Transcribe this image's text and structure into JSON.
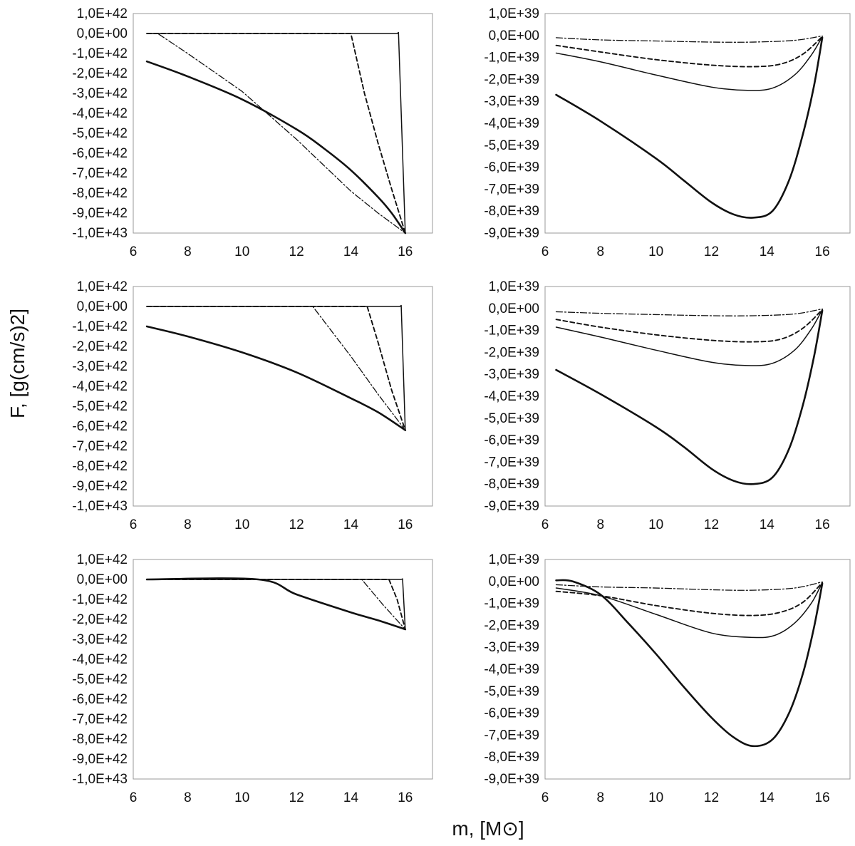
{
  "figure": {
    "ylabel": "F, [g(cm/s)2]",
    "xlabel": "m, [M⊙]"
  },
  "chart_data": [
    {
      "type": "line",
      "panel": "top-left",
      "xlim": [
        6,
        17
      ],
      "ylim": [
        -1e+43,
        1e+42
      ],
      "xticks": [
        6,
        8,
        10,
        12,
        14,
        16
      ],
      "xtick_labels": [
        "6",
        "8",
        "10",
        "12",
        "14",
        "16"
      ],
      "yticks": [
        1e+42,
        0,
        -1e+42,
        -2e+42,
        -3e+42,
        -4e+42,
        -5e+42,
        -6e+42,
        -7e+42,
        -8e+42,
        -9e+42,
        -1e+43
      ],
      "ytick_labels": [
        "1,0E+42",
        "0,0E+00",
        "-1,0E+42",
        "-2,0E+42",
        "-3,0E+42",
        "-4,0E+42",
        "-5,0E+42",
        "-6,0E+42",
        "-7,0E+42",
        "-8,0E+42",
        "-9,0E+42",
        "-1,0E+43"
      ],
      "grid": false,
      "series": [
        {
          "style": "solid-thick",
          "points": [
            [
              6.5,
              -1.4e+42
            ],
            [
              8,
              -2.15e+42
            ],
            [
              10,
              -3.3e+42
            ],
            [
              12,
              -4.8e+42
            ],
            [
              13,
              -5.75e+42
            ],
            [
              14,
              -6.85e+42
            ],
            [
              15,
              -8.2e+42
            ],
            [
              15.5,
              -9e+42
            ],
            [
              16,
              -1e+43
            ]
          ]
        },
        {
          "style": "solid-thin",
          "points": [
            [
              6.5,
              0
            ],
            [
              15.7,
              0
            ],
            [
              15.75,
              5e+40
            ],
            [
              16,
              -1e+43
            ]
          ]
        },
        {
          "style": "dashed",
          "points": [
            [
              6.5,
              0
            ],
            [
              14.0,
              0
            ],
            [
              14.5,
              -3e+42
            ],
            [
              15,
              -5.5e+42
            ],
            [
              15.5,
              -7.8e+42
            ],
            [
              16,
              -1e+43
            ]
          ]
        },
        {
          "style": "dashdot",
          "points": [
            [
              6.5,
              0
            ],
            [
              6.9,
              0
            ],
            [
              8,
              -1e+42
            ],
            [
              10,
              -2.9e+42
            ],
            [
              12,
              -5.3e+42
            ],
            [
              14,
              -7.9e+42
            ],
            [
              15,
              -9e+42
            ],
            [
              16,
              -1e+43
            ]
          ]
        }
      ]
    },
    {
      "type": "line",
      "panel": "top-right",
      "xlim": [
        6,
        17
      ],
      "ylim": [
        -9e+39,
        1e+39
      ],
      "xticks": [
        6,
        8,
        10,
        12,
        14,
        16
      ],
      "xtick_labels": [
        "6",
        "8",
        "10",
        "12",
        "14",
        "16"
      ],
      "yticks": [
        1e+39,
        0,
        -1e+39,
        -2e+39,
        -3e+39,
        -4e+39,
        -5e+39,
        -6e+39,
        -7e+39,
        -8e+39,
        -9e+39
      ],
      "ytick_labels": [
        "1,0E+39",
        "0,0E+00",
        "-1,0E+39",
        "-2,0E+39",
        "-3,0E+39",
        "-4,0E+39",
        "-5,0E+39",
        "-6,0E+39",
        "-7,0E+39",
        "-8,0E+39",
        "-9,0E+39"
      ],
      "grid": false,
      "series": [
        {
          "style": "solid-thick",
          "points": [
            [
              6.4,
              -2.7e+39
            ],
            [
              8,
              -3.9e+39
            ],
            [
              10,
              -5.6e+39
            ],
            [
              11,
              -6.6e+39
            ],
            [
              12,
              -7.6e+39
            ],
            [
              12.8,
              -8.15e+39
            ],
            [
              13.5,
              -8.3e+39
            ],
            [
              14.2,
              -8e+39
            ],
            [
              14.8,
              -6.6e+39
            ],
            [
              15.3,
              -4.5e+39
            ],
            [
              15.7,
              -2.3e+39
            ],
            [
              16,
              -1e+38
            ]
          ]
        },
        {
          "style": "solid-thin",
          "points": [
            [
              6.4,
              -8e+38
            ],
            [
              8,
              -1.2e+39
            ],
            [
              10,
              -1.8e+39
            ],
            [
              12,
              -2.35e+39
            ],
            [
              13.3,
              -2.5e+39
            ],
            [
              14.2,
              -2.4e+39
            ],
            [
              15,
              -1.8e+39
            ],
            [
              15.6,
              -9e+38
            ],
            [
              16,
              -5e+37
            ]
          ]
        },
        {
          "style": "dashed",
          "points": [
            [
              6.4,
              -4.5e+38
            ],
            [
              8,
              -7.5e+38
            ],
            [
              10,
              -1.1e+39
            ],
            [
              12,
              -1.35e+39
            ],
            [
              13.5,
              -1.42e+39
            ],
            [
              14.5,
              -1.3e+39
            ],
            [
              15.3,
              -8.5e+38
            ],
            [
              16,
              -5e+37
            ]
          ]
        },
        {
          "style": "dashdot",
          "points": [
            [
              6.4,
              -1e+38
            ],
            [
              8,
              -2e+38
            ],
            [
              10,
              -2.5e+38
            ],
            [
              12,
              -3e+38
            ],
            [
              13.5,
              -3e+38
            ],
            [
              15,
              -2.2e+38
            ],
            [
              16,
              -2e+37
            ]
          ]
        }
      ]
    },
    {
      "type": "line",
      "panel": "middle-left",
      "xlim": [
        6,
        17
      ],
      "ylim": [
        -1e+43,
        1e+42
      ],
      "xticks": [
        6,
        8,
        10,
        12,
        14,
        16
      ],
      "xtick_labels": [
        "6",
        "8",
        "10",
        "12",
        "14",
        "16"
      ],
      "yticks": [
        1e+42,
        0,
        -1e+42,
        -2e+42,
        -3e+42,
        -4e+42,
        -5e+42,
        -6e+42,
        -7e+42,
        -8e+42,
        -9e+42,
        -1e+43
      ],
      "ytick_labels": [
        "1,0E+42",
        "0,0E+00",
        "-1,0E+42",
        "-2,0E+42",
        "-3,0E+42",
        "-4,0E+42",
        "-5,0E+42",
        "-6,0E+42",
        "-7,0E+42",
        "-8,0E+42",
        "-9,0E+42",
        "-1,0E+43"
      ],
      "grid": false,
      "series": [
        {
          "style": "solid-thick",
          "points": [
            [
              6.5,
              -1e+42
            ],
            [
              8,
              -1.5e+42
            ],
            [
              10,
              -2.3e+42
            ],
            [
              12,
              -3.3e+42
            ],
            [
              14,
              -4.6e+42
            ],
            [
              15,
              -5.3e+42
            ],
            [
              16,
              -6.2e+42
            ]
          ]
        },
        {
          "style": "solid-thin",
          "points": [
            [
              6.5,
              0
            ],
            [
              15.8,
              0
            ],
            [
              15.85,
              5e+40
            ],
            [
              16,
              -6.2e+42
            ]
          ]
        },
        {
          "style": "dashed",
          "points": [
            [
              6.5,
              0
            ],
            [
              14.6,
              0
            ],
            [
              15,
              -1.8e+42
            ],
            [
              15.5,
              -4.2e+42
            ],
            [
              16,
              -6.2e+42
            ]
          ]
        },
        {
          "style": "dashdot",
          "points": [
            [
              6.5,
              0
            ],
            [
              12.6,
              0
            ],
            [
              14,
              -2.5e+42
            ],
            [
              15,
              -4.4e+42
            ],
            [
              16,
              -6.2e+42
            ]
          ]
        }
      ]
    },
    {
      "type": "line",
      "panel": "middle-right",
      "xlim": [
        6,
        17
      ],
      "ylim": [
        -9e+39,
        1e+39
      ],
      "xticks": [
        6,
        8,
        10,
        12,
        14,
        16
      ],
      "xtick_labels": [
        "6",
        "8",
        "10",
        "12",
        "14",
        "16"
      ],
      "yticks": [
        1e+39,
        0,
        -1e+39,
        -2e+39,
        -3e+39,
        -4e+39,
        -5e+39,
        -6e+39,
        -7e+39,
        -8e+39,
        -9e+39
      ],
      "ytick_labels": [
        "1,0E+39",
        "0,0E+00",
        "-1,0E+39",
        "-2,0E+39",
        "-3,0E+39",
        "-4,0E+39",
        "-5,0E+39",
        "-6,0E+39",
        "-7,0E+39",
        "-8,0E+39",
        "-9,0E+39"
      ],
      "grid": false,
      "series": [
        {
          "style": "solid-thick",
          "points": [
            [
              6.4,
              -2.8e+39
            ],
            [
              8,
              -3.9e+39
            ],
            [
              10,
              -5.4e+39
            ],
            [
              11,
              -6.3e+39
            ],
            [
              12,
              -7.3e+39
            ],
            [
              12.8,
              -7.85e+39
            ],
            [
              13.5,
              -8e+39
            ],
            [
              14.2,
              -7.7e+39
            ],
            [
              14.8,
              -6.4e+39
            ],
            [
              15.3,
              -4.4e+39
            ],
            [
              15.7,
              -2.2e+39
            ],
            [
              16,
              -1e+38
            ]
          ]
        },
        {
          "style": "solid-thin",
          "points": [
            [
              6.4,
              -8.5e+38
            ],
            [
              8,
              -1.3e+39
            ],
            [
              10,
              -1.9e+39
            ],
            [
              12,
              -2.45e+39
            ],
            [
              13.3,
              -2.6e+39
            ],
            [
              14.2,
              -2.5e+39
            ],
            [
              15,
              -1.9e+39
            ],
            [
              15.6,
              -9.5e+38
            ],
            [
              16,
              -5e+37
            ]
          ]
        },
        {
          "style": "dashed",
          "points": [
            [
              6.4,
              -5e+38
            ],
            [
              8,
              -8.5e+38
            ],
            [
              10,
              -1.2e+39
            ],
            [
              12,
              -1.45e+39
            ],
            [
              13.5,
              -1.52e+39
            ],
            [
              14.5,
              -1.4e+39
            ],
            [
              15.3,
              -9e+38
            ],
            [
              16,
              -5e+37
            ]
          ]
        },
        {
          "style": "dashdot",
          "points": [
            [
              6.4,
              -1.5e+38
            ],
            [
              8,
              -2.2e+38
            ],
            [
              10,
              -2.8e+38
            ],
            [
              12,
              -3.3e+38
            ],
            [
              13.5,
              -3.3e+38
            ],
            [
              15,
              -2.5e+38
            ],
            [
              16,
              -2e+37
            ]
          ]
        }
      ]
    },
    {
      "type": "line",
      "panel": "bottom-left",
      "xlim": [
        6,
        17
      ],
      "ylim": [
        -1e+43,
        1e+42
      ],
      "xticks": [
        6,
        8,
        10,
        12,
        14,
        16
      ],
      "xtick_labels": [
        "6",
        "8",
        "10",
        "12",
        "14",
        "16"
      ],
      "yticks": [
        1e+42,
        0,
        -1e+42,
        -2e+42,
        -3e+42,
        -4e+42,
        -5e+42,
        -6e+42,
        -7e+42,
        -8e+42,
        -9e+42,
        -1e+43
      ],
      "ytick_labels": [
        "1,0E+42",
        "0,0E+00",
        "-1,0E+42",
        "-2,0E+42",
        "-3,0E+42",
        "-4,0E+42",
        "-5,0E+42",
        "-6,0E+42",
        "-7,0E+42",
        "-8,0E+42",
        "-9,0E+42",
        "-1,0E+43"
      ],
      "grid": false,
      "series": [
        {
          "style": "solid-thick",
          "points": [
            [
              6.5,
              0
            ],
            [
              10.6,
              0
            ],
            [
              12,
              -7.5e+41
            ],
            [
              14,
              -1.65e+42
            ],
            [
              15,
              -2.05e+42
            ],
            [
              16,
              -2.5e+42
            ]
          ]
        },
        {
          "style": "solid-thin",
          "points": [
            [
              6.5,
              0
            ],
            [
              15.85,
              0
            ],
            [
              15.9,
              3e+40
            ],
            [
              16,
              -2.5e+42
            ]
          ]
        },
        {
          "style": "dashed",
          "points": [
            [
              6.5,
              0
            ],
            [
              15.4,
              0
            ],
            [
              15.7,
              -1e+42
            ],
            [
              16,
              -2.5e+42
            ]
          ]
        },
        {
          "style": "dashdot",
          "points": [
            [
              6.5,
              0
            ],
            [
              14.4,
              0
            ],
            [
              15.2,
              -1.3e+42
            ],
            [
              16,
              -2.5e+42
            ]
          ]
        }
      ]
    },
    {
      "type": "line",
      "panel": "bottom-right",
      "xlim": [
        6,
        17
      ],
      "ylim": [
        -9e+39,
        1e+39
      ],
      "xticks": [
        6,
        8,
        10,
        12,
        14,
        16
      ],
      "xtick_labels": [
        "6",
        "8",
        "10",
        "12",
        "14",
        "16"
      ],
      "yticks": [
        1e+39,
        0,
        -1e+39,
        -2e+39,
        -3e+39,
        -4e+39,
        -5e+39,
        -6e+39,
        -7e+39,
        -8e+39,
        -9e+39
      ],
      "ytick_labels": [
        "1,0E+39",
        "0,0E+00",
        "-1,0E+39",
        "-2,0E+39",
        "-3,0E+39",
        "-4,0E+39",
        "-5,0E+39",
        "-6,0E+39",
        "-7,0E+39",
        "-8,0E+39",
        "-9,0E+39"
      ],
      "grid": false,
      "series": [
        {
          "style": "solid-thick",
          "points": [
            [
              6.4,
              5e+37
            ],
            [
              7,
              0.0
            ],
            [
              8,
              -6e+38
            ],
            [
              9,
              -1.9e+39
            ],
            [
              10,
              -3.3e+39
            ],
            [
              11,
              -4.8e+39
            ],
            [
              12,
              -6.2e+39
            ],
            [
              12.8,
              -7.1e+39
            ],
            [
              13.5,
              -7.5e+39
            ],
            [
              14.2,
              -7.2e+39
            ],
            [
              14.8,
              -6e+39
            ],
            [
              15.3,
              -4.2e+39
            ],
            [
              15.7,
              -2.1e+39
            ],
            [
              16,
              -1e+38
            ]
          ]
        },
        {
          "style": "solid-thin",
          "points": [
            [
              6.4,
              -3e+38
            ],
            [
              8,
              -6.5e+38
            ],
            [
              10,
              -1.5e+39
            ],
            [
              12,
              -2.35e+39
            ],
            [
              13.5,
              -2.55e+39
            ],
            [
              14.3,
              -2.45e+39
            ],
            [
              15,
              -1.9e+39
            ],
            [
              15.6,
              -1e+39
            ],
            [
              16,
              -5e+37
            ]
          ]
        },
        {
          "style": "dashed",
          "points": [
            [
              6.4,
              -4.5e+38
            ],
            [
              8,
              -6.5e+38
            ],
            [
              10,
              -1.1e+39
            ],
            [
              12,
              -1.45e+39
            ],
            [
              13.5,
              -1.55e+39
            ],
            [
              14.5,
              -1.4e+39
            ],
            [
              15.3,
              -9.5e+38
            ],
            [
              16,
              -5e+37
            ]
          ]
        },
        {
          "style": "dashdot",
          "points": [
            [
              6.4,
              -1.5e+38
            ],
            [
              8,
              -2.5e+38
            ],
            [
              10,
              -3e+38
            ],
            [
              12,
              -3.8e+38
            ],
            [
              13.5,
              -4e+38
            ],
            [
              15,
              -3e+38
            ],
            [
              16,
              -2e+37
            ]
          ]
        }
      ]
    }
  ]
}
